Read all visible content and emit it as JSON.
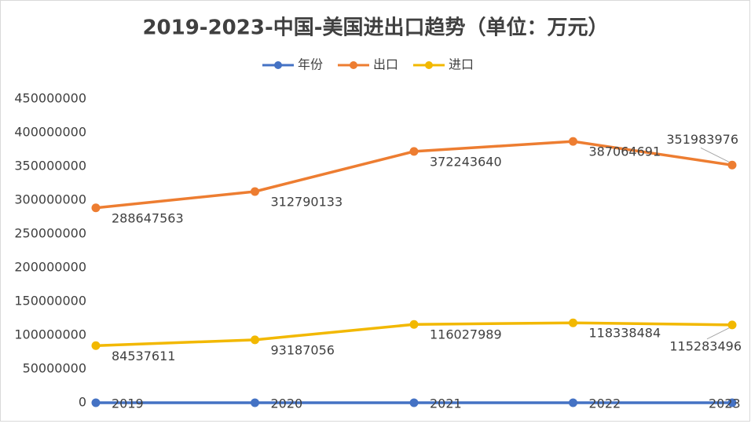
{
  "chart_data": {
    "type": "line",
    "title": "2019-2023-中国-美国进出口趋势（单位：万元）",
    "categories": [
      null,
      null,
      null,
      null,
      null
    ],
    "series": [
      {
        "name": "年份",
        "color": "#4472c4",
        "values": [
          2019,
          2020,
          2021,
          2022,
          2023
        ]
      },
      {
        "name": "出口",
        "color": "#ed7d31",
        "values": [
          288647563,
          312790133,
          372243640,
          387064691,
          351983976
        ]
      },
      {
        "name": "进口",
        "color": "#f2b800",
        "values": [
          84537611,
          93187056,
          116027989,
          118338484,
          115283496
        ]
      }
    ],
    "ylim": [
      0,
      450000000
    ],
    "yticks": [
      0,
      50000000,
      100000000,
      150000000,
      200000000,
      250000000,
      300000000,
      350000000,
      400000000,
      450000000
    ],
    "grid": false,
    "legend": "top"
  }
}
